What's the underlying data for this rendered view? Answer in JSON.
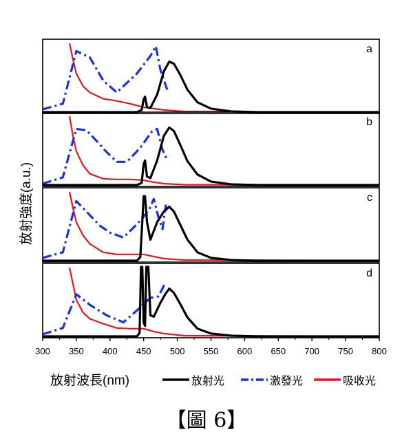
{
  "caption": "【圖 6】",
  "chart_data": {
    "type": "line",
    "xlabel": "放射波長(nm)",
    "ylabel": "放射強度(a.u.)",
    "xlim": [
      300,
      800
    ],
    "x_ticks": [
      300,
      350,
      400,
      450,
      500,
      550,
      600,
      650,
      700,
      750,
      800
    ],
    "ylim": [
      0,
      1
    ],
    "legend_position": "bottom",
    "legend": [
      {
        "key": "emission",
        "label": "放射光",
        "color": "#000000",
        "style": "solid"
      },
      {
        "key": "excitation",
        "label": "激發光",
        "color": "#1a2fe6",
        "style": "dashdot"
      },
      {
        "key": "absorption",
        "label": "吸收光",
        "color": "#e8141b",
        "style": "solid"
      }
    ],
    "panels": [
      {
        "label": "a",
        "series": {
          "emission": [
            [
              300,
              0
            ],
            [
              440,
              0
            ],
            [
              447,
              0.03
            ],
            [
              450,
              0.18
            ],
            [
              452,
              0.22
            ],
            [
              455,
              0.07
            ],
            [
              460,
              0.06
            ],
            [
              470,
              0.25
            ],
            [
              480,
              0.58
            ],
            [
              488,
              0.72
            ],
            [
              495,
              0.69
            ],
            [
              505,
              0.52
            ],
            [
              515,
              0.32
            ],
            [
              530,
              0.14
            ],
            [
              550,
              0.05
            ],
            [
              580,
              0.01
            ],
            [
              620,
              0
            ],
            [
              800,
              0
            ]
          ],
          "excitation": [
            [
              300,
              0.04
            ],
            [
              330,
              0.12
            ],
            [
              350,
              0.87
            ],
            [
              370,
              0.78
            ],
            [
              390,
              0.45
            ],
            [
              410,
              0.28
            ],
            [
              440,
              0.55
            ],
            [
              460,
              0.8
            ],
            [
              468,
              0.94
            ],
            [
              475,
              0.6
            ],
            [
              485,
              0.32
            ]
          ],
          "absorption": [
            [
              340,
              0.98
            ],
            [
              345,
              0.75
            ],
            [
              350,
              0.55
            ],
            [
              360,
              0.37
            ],
            [
              370,
              0.28
            ],
            [
              390,
              0.19
            ],
            [
              410,
              0.16
            ],
            [
              430,
              0.12
            ],
            [
              450,
              0.07
            ],
            [
              465,
              0.05
            ],
            [
              480,
              0.03
            ],
            [
              510,
              0.01
            ],
            [
              600,
              0.005
            ],
            [
              800,
              0
            ]
          ]
        }
      },
      {
        "label": "b",
        "series": {
          "emission": [
            [
              300,
              0
            ],
            [
              440,
              0
            ],
            [
              447,
              0.03
            ],
            [
              450,
              0.3
            ],
            [
              452,
              0.35
            ],
            [
              455,
              0.12
            ],
            [
              460,
              0.1
            ],
            [
              470,
              0.35
            ],
            [
              480,
              0.7
            ],
            [
              488,
              0.82
            ],
            [
              495,
              0.77
            ],
            [
              505,
              0.56
            ],
            [
              515,
              0.34
            ],
            [
              530,
              0.15
            ],
            [
              550,
              0.05
            ],
            [
              580,
              0.01
            ],
            [
              620,
              0
            ],
            [
              800,
              0
            ]
          ],
          "excitation": [
            [
              300,
              0.02
            ],
            [
              330,
              0.11
            ],
            [
              350,
              0.8
            ],
            [
              365,
              0.78
            ],
            [
              380,
              0.63
            ],
            [
              395,
              0.47
            ],
            [
              410,
              0.33
            ],
            [
              425,
              0.33
            ],
            [
              445,
              0.53
            ],
            [
              462,
              0.76
            ],
            [
              470,
              0.8
            ],
            [
              478,
              0.5
            ],
            [
              484,
              0.38
            ]
          ],
          "absorption": [
            [
              340,
              0.98
            ],
            [
              345,
              0.7
            ],
            [
              350,
              0.48
            ],
            [
              360,
              0.28
            ],
            [
              370,
              0.16
            ],
            [
              390,
              0.09
            ],
            [
              410,
              0.08
            ],
            [
              430,
              0.08
            ],
            [
              450,
              0.07
            ],
            [
              465,
              0.04
            ],
            [
              480,
              0.02
            ],
            [
              510,
              0.005
            ],
            [
              800,
              0
            ]
          ]
        }
      },
      {
        "label": "c",
        "series": {
          "emission": [
            [
              300,
              0
            ],
            [
              440,
              0
            ],
            [
              445,
              0.05
            ],
            [
              448,
              0.55
            ],
            [
              450,
              0.92
            ],
            [
              452,
              0.92
            ],
            [
              455,
              0.55
            ],
            [
              460,
              0.3
            ],
            [
              470,
              0.55
            ],
            [
              480,
              0.7
            ],
            [
              488,
              0.77
            ],
            [
              495,
              0.7
            ],
            [
              505,
              0.5
            ],
            [
              515,
              0.3
            ],
            [
              530,
              0.12
            ],
            [
              550,
              0.04
            ],
            [
              580,
              0.01
            ],
            [
              620,
              0
            ],
            [
              800,
              0
            ]
          ],
          "excitation": [
            [
              300,
              0.04
            ],
            [
              330,
              0.12
            ],
            [
              350,
              0.85
            ],
            [
              365,
              0.7
            ],
            [
              385,
              0.5
            ],
            [
              400,
              0.4
            ],
            [
              420,
              0.33
            ],
            [
              440,
              0.52
            ],
            [
              458,
              0.72
            ],
            [
              465,
              0.88
            ],
            [
              472,
              0.62
            ],
            [
              478,
              0.45
            ],
            [
              483,
              0.8
            ]
          ],
          "absorption": [
            [
              340,
              0.98
            ],
            [
              345,
              0.75
            ],
            [
              350,
              0.55
            ],
            [
              360,
              0.36
            ],
            [
              370,
              0.24
            ],
            [
              390,
              0.12
            ],
            [
              410,
              0.09
            ],
            [
              430,
              0.09
            ],
            [
              450,
              0.09
            ],
            [
              465,
              0.06
            ],
            [
              480,
              0.03
            ],
            [
              510,
              0.01
            ],
            [
              800,
              0
            ]
          ]
        }
      },
      {
        "label": "d",
        "series": {
          "emission": [
            [
              300,
              0
            ],
            [
              440,
              0
            ],
            [
              444,
              0.05
            ],
            [
              446,
              0.99
            ],
            [
              448,
              0.99
            ],
            [
              450,
              0.2
            ],
            [
              452,
              0.15
            ],
            [
              454,
              0.99
            ],
            [
              457,
              0.99
            ],
            [
              460,
              0.3
            ],
            [
              465,
              0.28
            ],
            [
              475,
              0.48
            ],
            [
              482,
              0.6
            ],
            [
              488,
              0.68
            ],
            [
              495,
              0.62
            ],
            [
              505,
              0.45
            ],
            [
              515,
              0.27
            ],
            [
              530,
              0.11
            ],
            [
              550,
              0.04
            ],
            [
              580,
              0.01
            ],
            [
              620,
              0
            ],
            [
              800,
              0
            ]
          ],
          "excitation": [
            [
              300,
              0.03
            ],
            [
              330,
              0.12
            ],
            [
              350,
              0.6
            ],
            [
              370,
              0.45
            ],
            [
              395,
              0.3
            ],
            [
              420,
              0.2
            ],
            [
              440,
              0.37
            ],
            [
              460,
              0.55
            ],
            [
              472,
              0.57
            ],
            [
              480,
              0.72
            ],
            [
              484,
              0.7
            ]
          ],
          "absorption": [
            [
              340,
              0.98
            ],
            [
              345,
              0.75
            ],
            [
              350,
              0.52
            ],
            [
              360,
              0.34
            ],
            [
              370,
              0.25
            ],
            [
              390,
              0.18
            ],
            [
              410,
              0.12
            ],
            [
              430,
              0.11
            ],
            [
              450,
              0.11
            ],
            [
              465,
              0.07
            ],
            [
              480,
              0.04
            ],
            [
              510,
              0.01
            ],
            [
              800,
              0
            ]
          ]
        }
      }
    ]
  }
}
